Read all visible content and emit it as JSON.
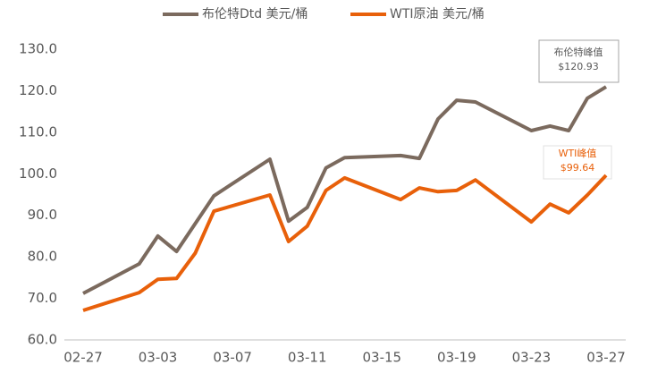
{
  "chart_data": {
    "type": "line",
    "x": [
      "02-27",
      "03-02",
      "03-03",
      "03-04",
      "03-05",
      "03-06",
      "03-09",
      "03-10",
      "03-11",
      "03-12",
      "03-13",
      "03-16",
      "03-17",
      "03-18",
      "03-19",
      "03-20",
      "03-23",
      "03-24",
      "03-25",
      "03-26",
      "03-27"
    ],
    "series": [
      {
        "name": "布伦特Dtd 美元/桶",
        "color": "#7b6a5e",
        "values": [
          71.2,
          78.3,
          85.0,
          81.3,
          88.0,
          94.7,
          103.5,
          88.6,
          91.9,
          101.4,
          103.9,
          104.4,
          103.7,
          113.2,
          117.7,
          117.3,
          110.4,
          111.5,
          110.4,
          118.2,
          120.93
        ]
      },
      {
        "name": "WTI原油 美元/桶",
        "color": "#e8600a",
        "values": [
          67.1,
          71.4,
          74.6,
          74.8,
          80.9,
          91.0,
          94.9,
          83.7,
          87.4,
          96.0,
          99.0,
          93.8,
          96.6,
          95.7,
          96.0,
          98.5,
          88.4,
          92.7,
          90.6,
          94.9,
          99.64
        ]
      }
    ],
    "xlim": [
      "02-27",
      "03-27"
    ],
    "xticks": [
      "02-27",
      "03-03",
      "03-07",
      "03-11",
      "03-15",
      "03-19",
      "03-23",
      "03-27"
    ],
    "ylim": [
      60,
      130
    ],
    "yticks": [
      {
        "value": 60,
        "label": "60.0"
      },
      {
        "value": 70,
        "label": "70.0"
      },
      {
        "value": 80,
        "label": "80.0"
      },
      {
        "value": 90,
        "label": "90.0"
      },
      {
        "value": 100,
        "label": "100.0"
      },
      {
        "value": 110,
        "label": "110.0"
      },
      {
        "value": 120,
        "label": "120.0"
      },
      {
        "value": 130,
        "label": "130.0"
      }
    ],
    "annotations": [
      {
        "lines": [
          "布伦特峰值",
          "$120.93"
        ],
        "color": "#595959"
      },
      {
        "lines": [
          "WTI峰值",
          "$99.64"
        ],
        "color": "#e8600a"
      }
    ]
  }
}
